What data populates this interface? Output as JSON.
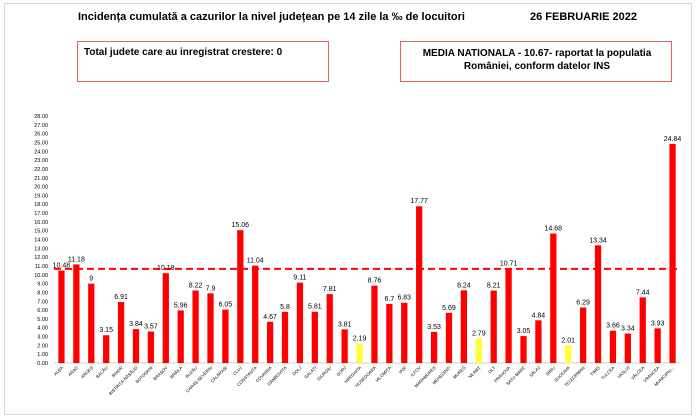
{
  "header": {
    "title": "Incidența cumulată a cazurilor la nivel județean pe 14 zile la ‰ de locuitori",
    "date": "26 FEBRUARIE 2022",
    "box_left": "Total judete care au inregistrat crestere: 0",
    "box_right": "MEDIA NATIONALA - 10.67-  raportat la populatia României, conform datelor INS"
  },
  "colors": {
    "bar_red": "#ff0000",
    "bar_yellow": "#ffff33",
    "reference_line": "#ff0000",
    "box_border": "#e06666"
  },
  "chart_data": {
    "type": "bar",
    "title": "Incidența cumulată a cazurilor la nivel județean pe 14 zile la ‰ de locuitori",
    "categories": [
      "ALBA",
      "ARAD",
      "ARGEȘ",
      "BACĂU",
      "BIHOR",
      "BISTRIȚA-NĂSĂUD",
      "BOTOȘANI",
      "BRAȘOV",
      "BRĂILA",
      "BUZĂU",
      "CARAȘ-SEVERIN",
      "CĂLĂRAȘI",
      "CLUJ",
      "CONSTANȚA",
      "COVASNA",
      "DÂMBOVIȚA",
      "DOLJ",
      "GALAȚI",
      "GIURGIU",
      "GORJ",
      "HARGHITA",
      "HUNEDOARA",
      "IALOMIȚA",
      "IAȘI",
      "ILFOV",
      "MARAMUREȘ",
      "MEHEDINȚI",
      "MUREȘ",
      "NEAMȚ",
      "OLT",
      "PRAHOVA",
      "SATU MARE",
      "SĂLAJ",
      "SIBIU",
      "SUCEAVA",
      "TELEORMAN",
      "TIMIȘ",
      "TULCEA",
      "VASLUI",
      "VÂLCEA",
      "VRANCEA",
      "MUNICIPIU..."
    ],
    "values": [
      10.48,
      11.18,
      9,
      3.15,
      6.91,
      3.84,
      3.57,
      10.18,
      5.96,
      8.22,
      7.9,
      6.05,
      15.06,
      11.04,
      4.67,
      5.8,
      9.11,
      5.81,
      7.81,
      3.81,
      2.19,
      8.76,
      6.7,
      6.83,
      17.77,
      3.53,
      5.69,
      8.24,
      2.79,
      8.21,
      10.71,
      3.05,
      4.84,
      14.68,
      2.01,
      6.29,
      13.34,
      3.66,
      3.34,
      7.44,
      3.93,
      24.84
    ],
    "value_labels": [
      "10.48",
      "11.18",
      "9",
      "3.15",
      "6.91",
      "3.84",
      "3.57",
      "10.18",
      "5.96",
      "8.22",
      "7.9",
      "6.05",
      "15.06",
      "11.04",
      "4.67",
      "5.8",
      "9.11",
      "5.81",
      "7.81",
      "3.81",
      "2.19",
      "8.76",
      "6.7",
      "6.83",
      "17.77",
      "3.53",
      "5.69",
      "8.24",
      "2.79",
      "8.21",
      "10.71",
      "3.05",
      "4.84",
      "14.68",
      "2.01",
      "6.29",
      "13.34",
      "3.66",
      "3.34",
      "7.44",
      "3.93",
      "24.84"
    ],
    "highlight_yellow": [
      "HARGHITA",
      "NEAMȚ",
      "SUCEAVA"
    ],
    "reference_line": 10.67,
    "ylim": [
      0,
      28
    ],
    "ytick_step": 1,
    "ytick_labels": [
      "0.00",
      "1.00",
      "2.00",
      "3.00",
      "4.00",
      "5.00",
      "6.00",
      "7.00",
      "8.00",
      "9.00",
      "10.00",
      "11.00",
      "12.00",
      "13.00",
      "14.00",
      "15.00",
      "16.00",
      "17.00",
      "18.00",
      "19.00",
      "20.00",
      "21.00",
      "22.00",
      "23.00",
      "24.00",
      "25.00",
      "26.00",
      "27.00",
      "28.00"
    ],
    "grid": false,
    "legend": "none",
    "xlabel": "",
    "ylabel": ""
  }
}
